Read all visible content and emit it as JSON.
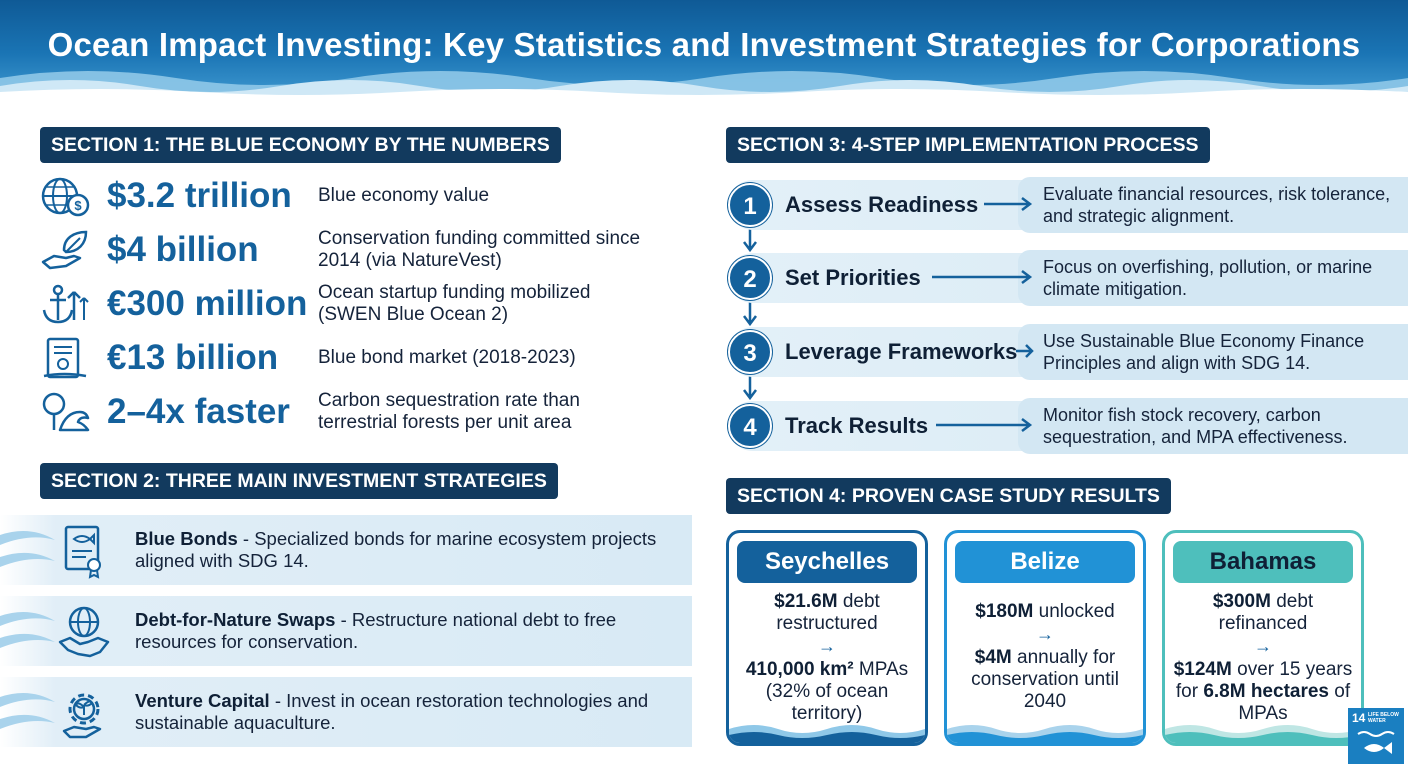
{
  "title": "Ocean Impact Investing: Key Statistics and Investment Strategies for Corporations",
  "section1": {
    "label": "SECTION 1: THE BLUE ECONOMY BY THE NUMBERS",
    "stats": [
      {
        "value": "$3.2 trillion",
        "desc": "Blue economy value",
        "icon": "globe-money-icon"
      },
      {
        "value": "$4 billion",
        "desc": "Conservation funding committed since 2014 (via NatureVest)",
        "icon": "hand-leaf-icon"
      },
      {
        "value": "€300 million",
        "desc": "Ocean startup funding mobilized (SWEN Blue Ocean 2)",
        "icon": "anchor-growth-icon"
      },
      {
        "value": "€13 billion",
        "desc": "Blue bond market (2018-2023)",
        "icon": "bond-certificate-icon"
      },
      {
        "value": "2–4x faster",
        "desc": "Carbon sequestration rate than terrestrial forests per unit area",
        "icon": "tree-wave-icon"
      }
    ]
  },
  "section2": {
    "label": "SECTION 2: THREE MAIN INVESTMENT STRATEGIES",
    "strategies": [
      {
        "name": "Blue Bonds",
        "desc": " - Specialized bonds for marine ecosystem projects aligned with SDG 14.",
        "icon": "fish-certificate-icon"
      },
      {
        "name": "Debt-for-Nature Swaps",
        "desc": " - Restructure national debt to free resources for conservation.",
        "icon": "globe-handshake-icon"
      },
      {
        "name": "Venture Capital",
        "desc": " - Invest in ocean restoration technologies and sustainable aquaculture.",
        "icon": "gear-sprout-icon"
      }
    ]
  },
  "section3": {
    "label": "SECTION 3: 4-STEP IMPLEMENTATION PROCESS",
    "steps": [
      {
        "num": "1",
        "title": "Assess Readiness",
        "desc": "Evaluate financial resources, risk tolerance, and strategic alignment."
      },
      {
        "num": "2",
        "title": "Set Priorities",
        "desc": "Focus on overfishing, pollution, or marine climate mitigation."
      },
      {
        "num": "3",
        "title": "Leverage Frameworks",
        "desc": "Use Sustainable Blue Economy Finance Principles and align with SDG 14."
      },
      {
        "num": "4",
        "title": "Track Results",
        "desc": "Monitor fish stock recovery, carbon sequestration, and MPA effectiveness."
      }
    ]
  },
  "section4": {
    "label": "SECTION 4: PROVEN CASE STUDY RESULTS",
    "cases": [
      {
        "name": "Seychelles",
        "color": "#14619c",
        "a_bold": "$21.6M",
        "a_rest": " debt restructured",
        "arrow": "→",
        "b_bold": "410,000 km²",
        "b_rest": " MPAs (32% of ocean territory)"
      },
      {
        "name": "Belize",
        "color": "#2192d6",
        "a_bold": "$180M",
        "a_rest": " unlocked",
        "arrow": "→",
        "b_bold": "$4M",
        "b_rest": " annually for conservation until 2040"
      },
      {
        "name": "Bahamas",
        "color": "#4ebfbc",
        "a_bold": "$300M",
        "a_rest": " debt refinanced",
        "arrow": "→",
        "b_bold": "$124M",
        "b_mid": " over 15 years for ",
        "b_bold2": "6.8M hectares",
        "b_rest": " of MPAs"
      }
    ]
  },
  "sdg_badge": {
    "number": "14",
    "text": "LIFE BELOW WATER"
  },
  "colors": {
    "primary": "#14619c",
    "dark": "#123a5e",
    "light": "#d6e9f4"
  }
}
